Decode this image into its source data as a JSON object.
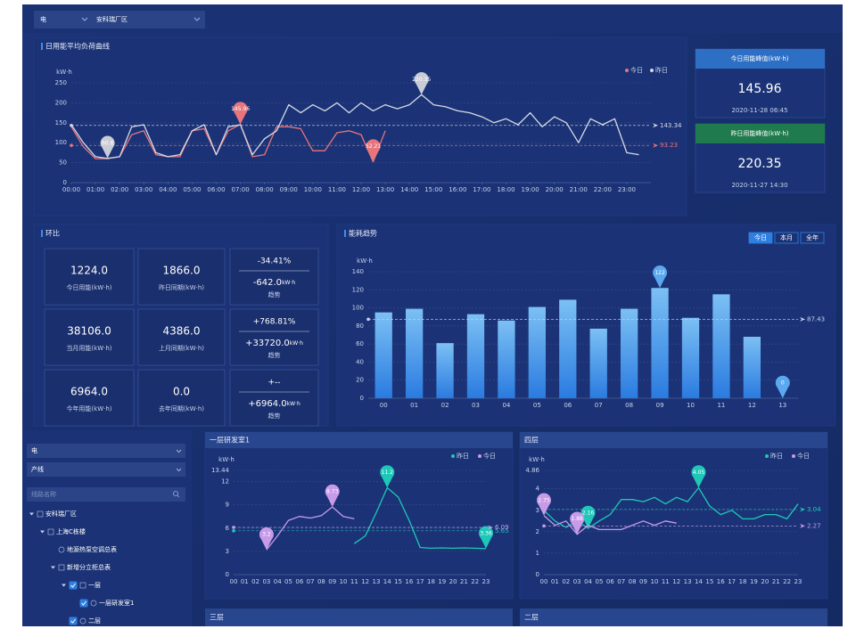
{
  "header": {
    "selects": [
      "电",
      "安科瑞厂区"
    ]
  },
  "cards": [
    {
      "title": "今日用能峰值(kW·h)",
      "value": "145.96",
      "time": "2020-11-28 06:45"
    },
    {
      "title": "昨日用能峰值(kW·h)",
      "value": "220.35",
      "time": "2020-11-27 14:30"
    }
  ],
  "comparison": {
    "title": "环比",
    "rows": [
      [
        {
          "value": "1224.0",
          "label": "今日用能(kW·h)"
        },
        {
          "value": "1866.0",
          "label": "昨日同期(kW·h)"
        },
        {
          "percent": "-34.41%",
          "diff": "-642.0",
          "unit": "kW·h",
          "label": "趋势"
        }
      ],
      [
        {
          "value": "38106.0",
          "label": "当月用能(kW·h)"
        },
        {
          "value": "4386.0",
          "label": "上月同期(kW·h)"
        },
        {
          "percent": "+768.81%",
          "diff": "+33720.0",
          "unit": "kW·h",
          "label": "趋势"
        }
      ],
      [
        {
          "value": "6964.0",
          "label": "今年用能(kW·h)"
        },
        {
          "value": "0.0",
          "label": "去年同期(kW·h)"
        },
        {
          "percent": "+--",
          "diff": "+6964.0",
          "unit": "kW·h",
          "label": "趋势"
        }
      ]
    ]
  },
  "tree": {
    "selects": [
      "电",
      "产线"
    ],
    "search": "线路名称",
    "items": [
      {
        "label": "安科瑞厂区",
        "children": [
          {
            "label": "上海C栋楼",
            "children": [
              {
                "label": "地源热泵空调总表"
              },
              {
                "label": "新增分立柜总表",
                "children": [
                  {
                    "label": "一层",
                    "checked": true,
                    "children": [
                      {
                        "label": "一层研发室1",
                        "checked": true
                      }
                    ]
                  },
                  {
                    "label": "二层",
                    "checked": true
                  }
                ]
              }
            ]
          }
        ]
      }
    ]
  },
  "panels": [
    "三层",
    "二层"
  ],
  "chart_data": [
    {
      "type": "line",
      "title": "日用能平均负荷曲线",
      "y_label": "kW·h",
      "x": [
        0,
        0.5,
        1,
        1.5,
        2,
        2.5,
        3,
        3.5,
        4,
        4.5,
        5,
        5.5,
        6,
        6.5,
        7,
        7.5,
        8,
        8.5,
        9,
        9.5,
        10,
        10.5,
        11,
        11.5,
        12,
        12.5,
        13,
        13.5,
        14,
        14.5,
        15,
        15.5,
        16,
        16.5,
        17,
        17.5,
        18,
        18.5,
        19,
        19.5,
        20,
        20.5,
        21,
        21.5,
        22,
        22.5,
        23,
        23.5
      ],
      "xlim": [
        0,
        24
      ],
      "xticks": [
        {
          "value": 0,
          "label": "00:00"
        },
        {
          "value": 1,
          "label": "01:00"
        },
        {
          "value": 2,
          "label": "02:00"
        },
        {
          "value": 3,
          "label": "03:00"
        },
        {
          "value": 4,
          "label": "04:00"
        },
        {
          "value": 5,
          "label": "05:00"
        },
        {
          "value": 6,
          "label": "06:00"
        },
        {
          "value": 7,
          "label": "07:00"
        },
        {
          "value": 8,
          "label": "08:00"
        },
        {
          "value": 9,
          "label": "09:00"
        },
        {
          "value": 10,
          "label": "10:00"
        },
        {
          "value": 11,
          "label": "11:00"
        },
        {
          "value": 12,
          "label": "12:00"
        },
        {
          "value": 13,
          "label": "13:00"
        },
        {
          "value": 14,
          "label": "14:00"
        },
        {
          "value": 15,
          "label": "15:00"
        },
        {
          "value": 16,
          "label": "16:00"
        },
        {
          "value": 17,
          "label": "17:00"
        },
        {
          "value": 18,
          "label": "18:00"
        },
        {
          "value": 19,
          "label": "19:00"
        },
        {
          "value": 20,
          "label": "20:00"
        },
        {
          "value": 21,
          "label": "21:00"
        },
        {
          "value": 22,
          "label": "22:00"
        },
        {
          "value": 23,
          "label": "23:00"
        }
      ],
      "ylim": [
        0,
        250
      ],
      "yticks": [
        0,
        50,
        100,
        150,
        200,
        250
      ],
      "grid": true,
      "series": [
        {
          "name": "今日",
          "color": "#e8757c",
          "average": 93.23,
          "values": [
            140,
            90,
            60,
            60,
            65,
            120,
            130,
            70,
            65,
            65,
            130,
            135,
            70,
            130,
            145.96,
            65,
            70,
            140,
            140,
            135,
            80,
            80,
            125,
            130,
            120,
            52.21,
            130,
            null,
            null,
            null,
            null,
            null,
            null,
            null,
            null,
            null,
            null,
            null,
            null,
            null,
            null,
            null,
            null,
            null,
            null,
            null,
            null,
            null
          ]
        },
        {
          "name": "昨日",
          "color": "#d5d9e6",
          "average": 143.34,
          "values": [
            145,
            100,
            65,
            60.8,
            65,
            140,
            145,
            75,
            65,
            70,
            130,
            145,
            70,
            140,
            145,
            70,
            110,
            130,
            195,
            175,
            195,
            180,
            200,
            175,
            200,
            180,
            195,
            185,
            195,
            220.35,
            195,
            190,
            180,
            175,
            165,
            150,
            160,
            145,
            175,
            140,
            165,
            150,
            100,
            160,
            145,
            160,
            75,
            70
          ]
        }
      ]
    },
    {
      "type": "bar",
      "title": "能耗趋势",
      "y_label": "kW·h",
      "buttons": [
        "今日",
        "本月",
        "全年"
      ],
      "categories": [
        "00",
        "01",
        "02",
        "03",
        "04",
        "05",
        "06",
        "07",
        "08",
        "09",
        "10",
        "11",
        "12",
        "13"
      ],
      "values": [
        95,
        99,
        61,
        93,
        86,
        101,
        109,
        77,
        99,
        122,
        89,
        115,
        68,
        0
      ],
      "color": "#3d8fe8",
      "average": 87.43,
      "ylim": [
        0,
        140
      ],
      "yticks": [
        0,
        20,
        40,
        60,
        80,
        100,
        120,
        140
      ],
      "grid": true
    },
    {
      "type": "line",
      "title": "一层研发室1",
      "y_label": "kW·h",
      "categories": [
        "00",
        "01",
        "02",
        "03",
        "04",
        "05",
        "06",
        "07",
        "08",
        "09",
        "10",
        "11",
        "12",
        "13",
        "14",
        "15",
        "16",
        "17",
        "18",
        "19",
        "20",
        "21",
        "22",
        "23"
      ],
      "ylim": [
        0,
        13.44
      ],
      "yticks": [
        0,
        3,
        6,
        9,
        12,
        13.44
      ],
      "grid": true,
      "series": [
        {
          "name": "昨日",
          "color": "#1ec8b8",
          "average": 5.65,
          "values": [
            null,
            null,
            null,
            null,
            null,
            null,
            null,
            null,
            null,
            null,
            null,
            4,
            5,
            8,
            11.2,
            10,
            7,
            3.5,
            3.4,
            3.45,
            3.4,
            3.45,
            3.4,
            3.36
          ]
        },
        {
          "name": "今日",
          "color": "#c79be8",
          "average": 6.09,
          "values": [
            null,
            null,
            null,
            3.2,
            5,
            7,
            7.5,
            7.3,
            7.6,
            8.73,
            7.5,
            7.2,
            null,
            null,
            null,
            null,
            null,
            null,
            null,
            null,
            null,
            null,
            null,
            null
          ]
        }
      ]
    },
    {
      "type": "line",
      "title": "四层",
      "y_label": "kW·h",
      "categories": [
        "00",
        "01",
        "02",
        "03",
        "04",
        "05",
        "06",
        "07",
        "08",
        "09",
        "10",
        "11",
        "12",
        "13",
        "14",
        "15",
        "16",
        "17",
        "18",
        "19",
        "20",
        "21",
        "22",
        "23"
      ],
      "ylim": [
        0,
        4.86
      ],
      "yticks": [
        0,
        1,
        2,
        3,
        4,
        4.86
      ],
      "grid": true,
      "series": [
        {
          "name": "昨日",
          "color": "#1ec8b8",
          "average": 3.04,
          "values": [
            3.0,
            2.5,
            2.2,
            2.5,
            2.16,
            2.5,
            2.8,
            3.5,
            3.5,
            3.4,
            3.6,
            3.3,
            3.6,
            3.4,
            4.05,
            3.2,
            2.8,
            3.0,
            2.6,
            2.6,
            2.8,
            2.8,
            2.6,
            3.3
          ]
        },
        {
          "name": "今日",
          "color": "#c79be8",
          "average": 2.27,
          "values": [
            2.75,
            2.3,
            2.5,
            1.88,
            2.3,
            2.1,
            2.1,
            2.1,
            2.3,
            2.5,
            2.3,
            2.5,
            2.4,
            null,
            null,
            null,
            null,
            null,
            null,
            null,
            null,
            null,
            null,
            null
          ]
        }
      ]
    }
  ]
}
